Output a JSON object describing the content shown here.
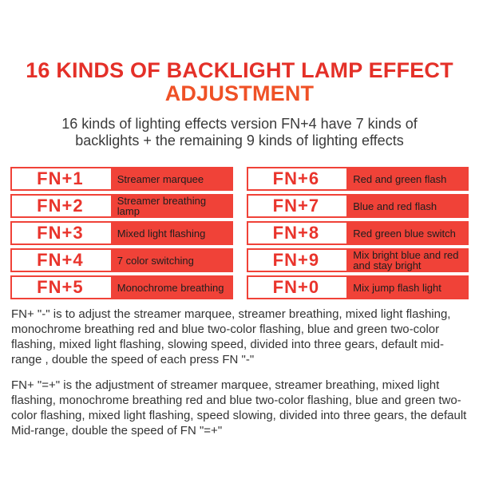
{
  "page": {
    "title_line1": "16 KINDS OF BACKLIGHT LAMP EFFECT",
    "title_line2": "ADJUSTMENT",
    "subtitle": "16 kinds of lighting effects version FN+4 have 7 kinds of backlights + the remaining 9 kinds of lighting effects"
  },
  "colors": {
    "title_red": "#e43028",
    "title_orange": "#ef5126",
    "table_red": "#f04238",
    "fn_key_red": "#e9342c",
    "body_text": "#333333",
    "effect_text": "#1e1e1e"
  },
  "table": {
    "left_rows": [
      {
        "key": "FN+1",
        "effect": "Streamer marquee"
      },
      {
        "key": "FN+2",
        "effect": "Streamer breathing lamp"
      },
      {
        "key": "FN+3",
        "effect": "Mixed light flashing"
      },
      {
        "key": "FN+4",
        "effect": "7 color switching"
      },
      {
        "key": "FN+5",
        "effect": "Monochrome breathing"
      }
    ],
    "right_rows": [
      {
        "key": "FN+6",
        "effect": "Red and green flash"
      },
      {
        "key": "FN+7",
        "effect": "Blue and red flash"
      },
      {
        "key": "FN+8",
        "effect": "Red green blue switch"
      },
      {
        "key": "FN+9",
        "effect": "Mix bright blue and red and stay bright"
      },
      {
        "key": "FN+0",
        "effect": "Mix jump flash light"
      }
    ]
  },
  "notes": {
    "paragraph1": "FN+ \"-\" is to adjust the streamer marquee, streamer breathing, mixed light flashing, monochrome breathing red and blue two-color flashing, blue and green two-color flashing, mixed light flashing, slowing speed, divided into three gears, default mid-range , double the speed of each press FN \"-\"",
    "paragraph2": "FN+ \"=+\" is the adjustment of streamer marquee, streamer breathing, mixed light flashing, monochrome breathing red and blue two-color flashing, blue and green two-color flashing, mixed light flashing, speed slowing, divided into three gears, the default Mid-range, double the speed of FN \"=+\""
  }
}
